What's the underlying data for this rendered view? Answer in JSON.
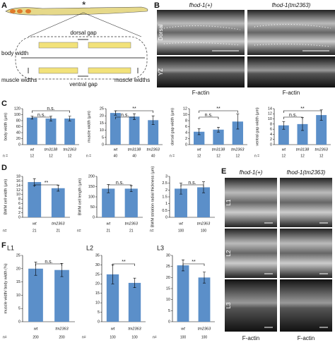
{
  "panel_labels": {
    "a": "A",
    "b": "B",
    "c": "C",
    "d": "D",
    "e": "E",
    "f": "F"
  },
  "panel_a": {
    "star": "*",
    "dorsal_gap": "dorsal gap",
    "body_width": "body width",
    "muscle_widths_left": "muscle widths",
    "muscle_widths_right": "muscle widths",
    "ventral_gap": "ventral gap"
  },
  "panel_b": {
    "columns": [
      "fhod-1(+)",
      "fhod-1(tm2363)"
    ],
    "rows": [
      "Dorsal",
      "YZ"
    ],
    "stain": [
      "F-actin",
      "F-actin"
    ]
  },
  "panel_e": {
    "columns": [
      "fhod-1(+)",
      "fhod-1(tm2363)"
    ],
    "rows": [
      "L1",
      "L2",
      "L3"
    ],
    "stain": [
      "F-actin",
      "F-actin"
    ]
  },
  "chart_data": [
    {
      "type": "bar",
      "y_label": "body width (μm)",
      "categories": [
        "wt",
        "tm3138",
        "tm2363"
      ],
      "values": [
        90,
        87,
        87
      ],
      "errors": [
        5,
        8,
        8
      ],
      "n_label": "n =",
      "n": [
        12,
        12,
        12
      ],
      "ylim": [
        0,
        120
      ],
      "yticks": [
        0,
        20,
        40,
        60,
        80,
        100,
        120
      ],
      "annotations": [
        "n.s.",
        "n.s."
      ],
      "color": "#5b8fc9"
    },
    {
      "type": "bar",
      "y_label": "muscle width (μm)",
      "categories": [
        "wt",
        "tm3138",
        "tm2363"
      ],
      "values": [
        22,
        19.5,
        17
      ],
      "errors": [
        1.5,
        2,
        3
      ],
      "n_label": "n =",
      "n": [
        40,
        40,
        40
      ],
      "ylim": [
        0,
        25
      ],
      "yticks": [
        0,
        5,
        10,
        15,
        20,
        25
      ],
      "annotations": [
        "n.s.",
        "**"
      ],
      "color": "#5b8fc9"
    },
    {
      "type": "bar",
      "y_label": "dorsal gap width (μm)",
      "categories": [
        "wt",
        "tm3138",
        "tm2363"
      ],
      "values": [
        4.3,
        5,
        7.7
      ],
      "errors": [
        1,
        0.8,
        2.5
      ],
      "n_label": "n =",
      "n": [
        12,
        12,
        12
      ],
      "ylim": [
        0,
        12
      ],
      "yticks": [
        0,
        2,
        4,
        6,
        8,
        10,
        12
      ],
      "annotations": [
        "n.s.",
        "**"
      ],
      "color": "#5b8fc9"
    },
    {
      "type": "bar",
      "y_label": "ventral gap width (μm)",
      "categories": [
        "wt",
        "tm3138",
        "tm2363"
      ],
      "values": [
        7.5,
        8,
        11.5
      ],
      "errors": [
        1.5,
        2.5,
        2
      ],
      "n_label": "n =",
      "n": [
        12,
        12,
        12
      ],
      "ylim": [
        0,
        14
      ],
      "yticks": [
        0,
        2,
        4,
        6,
        8,
        10,
        12,
        14
      ],
      "annotations": [
        "n.s.",
        "**"
      ],
      "color": "#5b8fc9"
    },
    {
      "type": "bar",
      "y_label": "BWM cell width (μm)",
      "categories": [
        "wt",
        "tm2363"
      ],
      "values": [
        15.5,
        12.8
      ],
      "errors": [
        1.5,
        1.3
      ],
      "n_label": "n=",
      "n": [
        21,
        21
      ],
      "ylim": [
        0,
        18
      ],
      "yticks": [
        0,
        2,
        4,
        6,
        8,
        10,
        12,
        14,
        16,
        18
      ],
      "annotations": [
        "**"
      ],
      "color": "#5b8fc9"
    },
    {
      "type": "bar",
      "y_label": "BWM cell length (μm)",
      "categories": [
        "wt",
        "tm2363"
      ],
      "values": [
        140,
        140
      ],
      "errors": [
        20,
        15
      ],
      "n_label": "n=",
      "n": [
        21,
        21
      ],
      "ylim": [
        0,
        200
      ],
      "yticks": [
        0,
        50,
        100,
        150,
        200
      ],
      "annotations": [
        "n.s."
      ],
      "color": "#5b8fc9"
    },
    {
      "type": "bar",
      "y_label": "BWM striation radial thickness (μm)",
      "categories": [
        "wt",
        "tm2363"
      ],
      "values": [
        2.1,
        2.2
      ],
      "errors": [
        0.4,
        0.4
      ],
      "n_label": "n=",
      "n": [
        100,
        100
      ],
      "ylim": [
        0,
        3
      ],
      "yticks": [
        0,
        0.5,
        1,
        1.5,
        2,
        2.5,
        3
      ],
      "annotations": [
        "n.s."
      ],
      "color": "#5b8fc9"
    },
    {
      "type": "bar",
      "title": "L1",
      "y_label": "muscle width/ body width (%)",
      "categories": [
        "wt",
        "tm2363"
      ],
      "values": [
        20,
        19.5
      ],
      "errors": [
        2.5,
        2.5
      ],
      "n_label": "n=",
      "n": [
        200,
        200
      ],
      "ylim": [
        0,
        25
      ],
      "yticks": [
        0,
        5,
        10,
        15,
        20,
        25
      ],
      "annotations": [
        "n.s."
      ],
      "color": "#5b8fc9"
    },
    {
      "type": "bar",
      "title": "L2",
      "categories": [
        "wt",
        "tm2363"
      ],
      "values": [
        25,
        20.5
      ],
      "errors": [
        5,
        2.5
      ],
      "n_label": "n=",
      "n": [
        100,
        100
      ],
      "ylim": [
        0,
        35
      ],
      "yticks": [
        0,
        5,
        10,
        15,
        20,
        25,
        30,
        35
      ],
      "annotations": [
        "**"
      ],
      "color": "#5b8fc9"
    },
    {
      "type": "bar",
      "title": "L3",
      "categories": [
        "wt",
        "tm2363"
      ],
      "values": [
        25.5,
        20
      ],
      "errors": [
        2.5,
        2.5
      ],
      "n_label": "n=",
      "n": [
        100,
        100
      ],
      "ylim": [
        0,
        30
      ],
      "yticks": [
        0,
        5,
        10,
        15,
        20,
        25,
        30
      ],
      "annotations": [
        "**"
      ],
      "color": "#5b8fc9"
    }
  ]
}
